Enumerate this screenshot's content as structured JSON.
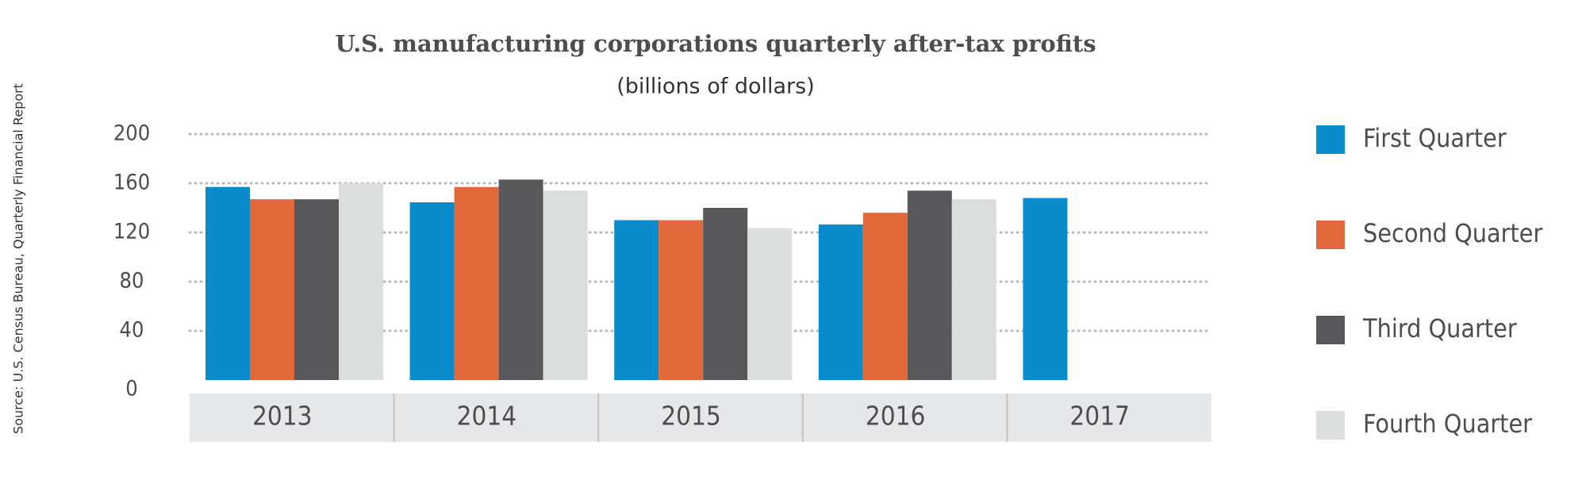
{
  "chart_data": {
    "type": "bar",
    "title": "U.S. manufacturing corporations quarterly after-tax profits",
    "subtitle": "(billions of dollars)",
    "source": "Source: U.S. Census Bureau, Quarterly Financial Report",
    "categories": [
      "2013",
      "2014",
      "2015",
      "2016",
      "2017"
    ],
    "series": [
      {
        "name": "First Quarter",
        "color": "#0a8bcb",
        "values": [
          157,
          144.5,
          130,
          126.5,
          148
        ]
      },
      {
        "name": "Second Quarter",
        "color": "#e0683a",
        "values": [
          147,
          157,
          130,
          136,
          null
        ]
      },
      {
        "name": "Third Quarter",
        "color": "#58585a",
        "values": [
          147,
          163,
          140,
          154,
          null
        ]
      },
      {
        "name": "Fourth Quarter",
        "color": "#dcdddd",
        "values": [
          160,
          154,
          123.5,
          147,
          null
        ]
      }
    ],
    "ylim": [
      0,
      200
    ],
    "yticks": [
      0,
      40,
      80,
      120,
      160,
      200
    ],
    "grid": true
  }
}
